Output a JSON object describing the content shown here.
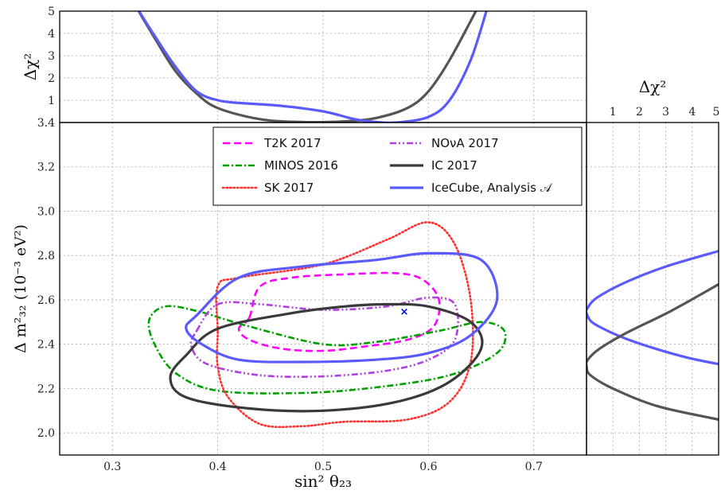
{
  "chart_data": {
    "type": "line",
    "description_panels": [
      "main",
      "top",
      "right"
    ],
    "main": {
      "xlabel": "sin² θ₂₃",
      "ylabel": "Δ m²₃₂ (10⁻³ eV²)",
      "xlim": [
        0.25,
        0.75
      ],
      "ylim": [
        1.9,
        3.4
      ],
      "xticks": [
        "0.3",
        "0.4",
        "0.5",
        "0.6",
        "0.7"
      ],
      "yticks": [
        "2.0",
        "2.2",
        "2.4",
        "2.6",
        "2.8",
        "3.0",
        "3.2",
        "3.4"
      ],
      "grid": true,
      "legend_position": "top-center",
      "series": [
        {
          "name": "T2K 2017",
          "color": "#ff00ff",
          "style": "dashed",
          "points": [
            [
              0.43,
              2.52
            ],
            [
              0.44,
              2.66
            ],
            [
              0.47,
              2.7
            ],
            [
              0.52,
              2.715
            ],
            [
              0.57,
              2.72
            ],
            [
              0.595,
              2.69
            ],
            [
              0.61,
              2.6
            ],
            [
              0.605,
              2.48
            ],
            [
              0.58,
              2.42
            ],
            [
              0.54,
              2.39
            ],
            [
              0.5,
              2.37
            ],
            [
              0.46,
              2.38
            ],
            [
              0.43,
              2.42
            ],
            [
              0.42,
              2.47
            ]
          ]
        },
        {
          "name": "MINOS 2016",
          "color": "#00a000",
          "style": "dashdot",
          "points": [
            [
              0.35,
              2.57
            ],
            [
              0.38,
              2.55
            ],
            [
              0.43,
              2.48
            ],
            [
              0.5,
              2.4
            ],
            [
              0.55,
              2.41
            ],
            [
              0.61,
              2.46
            ],
            [
              0.65,
              2.5
            ],
            [
              0.672,
              2.46
            ],
            [
              0.665,
              2.36
            ],
            [
              0.62,
              2.26
            ],
            [
              0.55,
              2.205
            ],
            [
              0.48,
              2.18
            ],
            [
              0.4,
              2.19
            ],
            [
              0.36,
              2.27
            ],
            [
              0.34,
              2.4
            ],
            [
              0.335,
              2.51
            ]
          ]
        },
        {
          "name": "SK 2017",
          "color": "#ff3030",
          "style": "dotted",
          "points": [
            [
              0.4,
              2.46
            ],
            [
              0.4,
              2.66
            ],
            [
              0.42,
              2.7
            ],
            [
              0.5,
              2.76
            ],
            [
              0.56,
              2.87
            ],
            [
              0.6,
              2.95
            ],
            [
              0.625,
              2.85
            ],
            [
              0.64,
              2.6
            ],
            [
              0.64,
              2.32
            ],
            [
              0.62,
              2.14
            ],
            [
              0.58,
              2.06
            ],
            [
              0.52,
              2.05
            ],
            [
              0.48,
              2.03
            ],
            [
              0.44,
              2.04
            ],
            [
              0.41,
              2.16
            ],
            [
              0.4,
              2.3
            ]
          ]
        },
        {
          "name": "NOνA 2017",
          "color": "#b040e0",
          "style": "dashdotdot",
          "points": [
            [
              0.38,
              2.46
            ],
            [
              0.4,
              2.58
            ],
            [
              0.44,
              2.58
            ],
            [
              0.5,
              2.555
            ],
            [
              0.56,
              2.57
            ],
            [
              0.6,
              2.61
            ],
            [
              0.625,
              2.58
            ],
            [
              0.625,
              2.42
            ],
            [
              0.6,
              2.33
            ],
            [
              0.56,
              2.28
            ],
            [
              0.5,
              2.255
            ],
            [
              0.44,
              2.26
            ],
            [
              0.39,
              2.31
            ],
            [
              0.375,
              2.39
            ]
          ]
        },
        {
          "name": "IC 2017",
          "color": "#3a3a3a",
          "style": "solid",
          "points": [
            [
              0.37,
              2.35
            ],
            [
              0.4,
              2.47
            ],
            [
              0.47,
              2.54
            ],
            [
              0.52,
              2.57
            ],
            [
              0.56,
              2.58
            ],
            [
              0.6,
              2.57
            ],
            [
              0.64,
              2.5
            ],
            [
              0.65,
              2.38
            ],
            [
              0.62,
              2.23
            ],
            [
              0.57,
              2.14
            ],
            [
              0.5,
              2.1
            ],
            [
              0.43,
              2.11
            ],
            [
              0.37,
              2.16
            ],
            [
              0.355,
              2.25
            ]
          ]
        },
        {
          "name": "IceCube, Analysis 𝒜",
          "color": "#5a5aff",
          "style": "solid",
          "points": [
            [
              0.38,
              2.53
            ],
            [
              0.42,
              2.7
            ],
            [
              0.48,
              2.75
            ],
            [
              0.55,
              2.78
            ],
            [
              0.6,
              2.81
            ],
            [
              0.65,
              2.78
            ],
            [
              0.665,
              2.6
            ],
            [
              0.64,
              2.44
            ],
            [
              0.6,
              2.36
            ],
            [
              0.55,
              2.33
            ],
            [
              0.48,
              2.32
            ],
            [
              0.42,
              2.33
            ],
            [
              0.385,
              2.4
            ],
            [
              0.37,
              2.47
            ]
          ]
        }
      ],
      "best_fit": {
        "x": 0.577,
        "y": 2.55,
        "symbol": "×",
        "color": "#0000ff"
      }
    },
    "top": {
      "ylabel": "Δχ²",
      "ylim": [
        0,
        5
      ],
      "yticks": [
        "1",
        "2",
        "3",
        "4",
        "5"
      ],
      "series": [
        {
          "name": "IceCube, Analysis 𝒜",
          "color": "#5a5aff",
          "x": [
            0.32,
            0.34,
            0.36,
            0.38,
            0.4,
            0.42,
            0.46,
            0.5,
            0.53,
            0.55,
            0.57,
            0.6,
            0.62,
            0.64,
            0.655
          ],
          "y": [
            5.4,
            3.9,
            2.5,
            1.4,
            1.0,
            0.88,
            0.75,
            0.5,
            0.15,
            0.02,
            0.0,
            0.25,
            1.0,
            2.8,
            5.0
          ]
        },
        {
          "name": "IC 2017",
          "color": "#555555",
          "x": [
            0.32,
            0.34,
            0.36,
            0.38,
            0.4,
            0.44,
            0.48,
            0.52,
            0.55,
            0.58,
            0.6,
            0.62,
            0.645
          ],
          "y": [
            5.4,
            3.8,
            2.3,
            1.3,
            0.65,
            0.15,
            0.02,
            0.05,
            0.2,
            0.65,
            1.4,
            2.8,
            5.0
          ]
        }
      ]
    },
    "right": {
      "xlabel": "Δχ²",
      "xlim": [
        0,
        5
      ],
      "xticks": [
        "1",
        "2",
        "3",
        "4",
        "5"
      ],
      "series": [
        {
          "name": "IceCube, Analysis 𝒜",
          "color": "#5a5aff",
          "y": [
            2.82,
            2.75,
            2.68,
            2.61,
            2.56,
            2.54,
            2.5,
            2.46,
            2.42,
            2.38,
            2.34,
            2.31
          ],
          "x": [
            5.0,
            3.0,
            1.5,
            0.4,
            0.02,
            0.0,
            0.2,
            0.8,
            1.6,
            2.6,
            3.8,
            5.0
          ]
        },
        {
          "name": "IC 2017",
          "color": "#555555",
          "y": [
            2.67,
            2.55,
            2.45,
            2.38,
            2.33,
            2.3,
            2.26,
            2.2,
            2.12,
            2.06
          ],
          "x": [
            5.0,
            3.2,
            1.5,
            0.5,
            0.05,
            0.0,
            0.15,
            1.0,
            2.7,
            5.0
          ]
        }
      ]
    }
  }
}
